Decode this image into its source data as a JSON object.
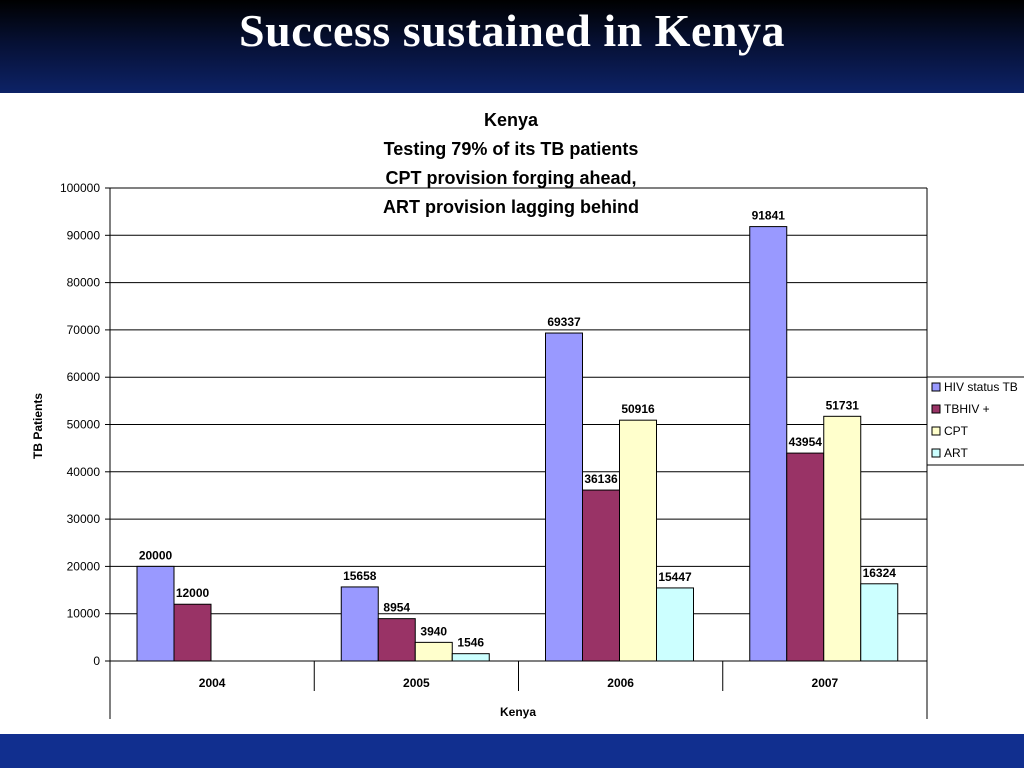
{
  "slide": {
    "title": "Success sustained in Kenya"
  },
  "colors": {
    "header_top": "#000000",
    "header_bottom": "#0d2266",
    "footer": "#112f8f",
    "series": [
      "#9999ff",
      "#993366",
      "#ffffcc",
      "#ccffff"
    ]
  },
  "chart_data": {
    "type": "bar",
    "title_lines": [
      "Kenya",
      "Testing 79% of its TB patients",
      "CPT provision forging ahead,",
      "ART provision lagging behind"
    ],
    "xlabel": "Kenya",
    "ylabel": "TB Patients",
    "ylim": [
      0,
      100000
    ],
    "yticks": [
      0,
      10000,
      20000,
      30000,
      40000,
      50000,
      60000,
      70000,
      80000,
      90000,
      100000
    ],
    "categories": [
      "2004",
      "2005",
      "2006",
      "2007"
    ],
    "series": [
      {
        "name": "HIV status TB",
        "values": [
          20000,
          15658,
          69337,
          91841
        ]
      },
      {
        "name": "TBHIV +",
        "values": [
          12000,
          8954,
          36136,
          43954
        ]
      },
      {
        "name": "CPT",
        "values": [
          null,
          3940,
          50916,
          51731
        ]
      },
      {
        "name": "ART",
        "values": [
          null,
          1546,
          15447,
          16324
        ]
      }
    ],
    "grid": true,
    "legend_position": "right"
  }
}
